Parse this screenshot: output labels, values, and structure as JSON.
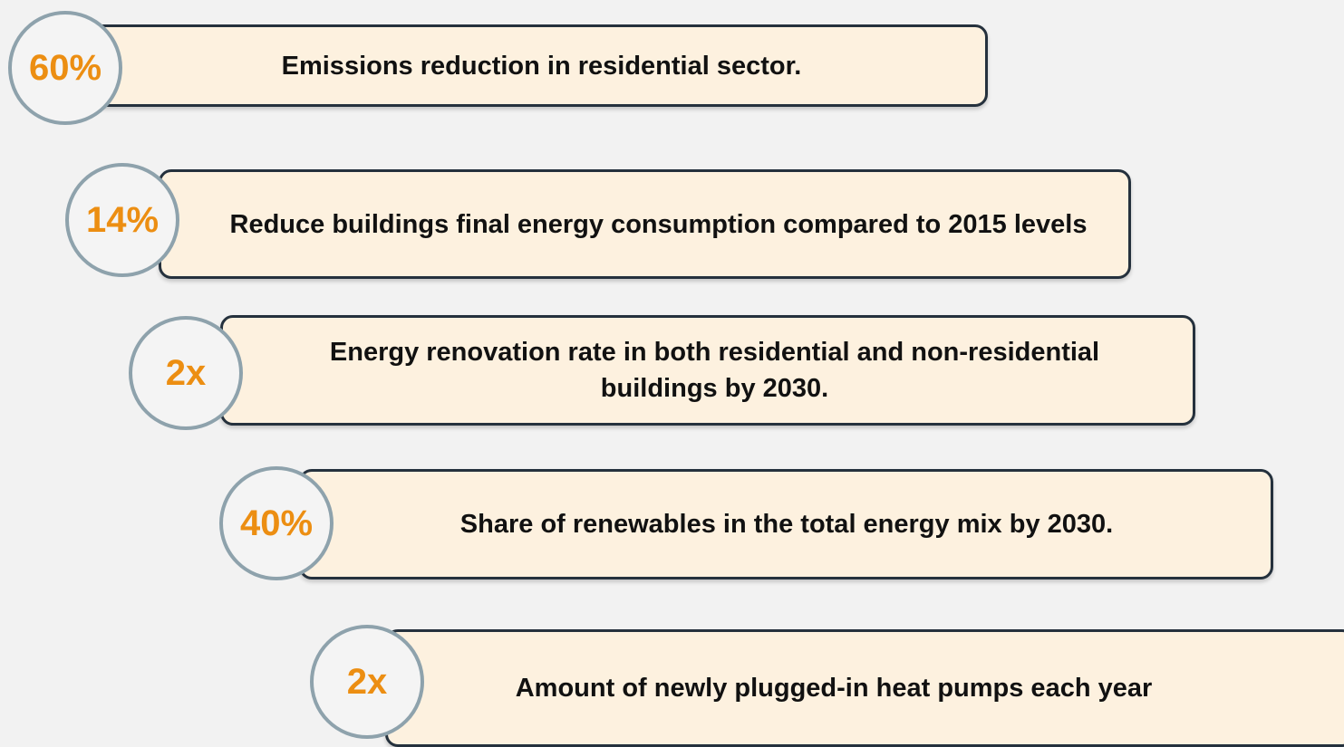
{
  "items": [
    {
      "badge": "60%",
      "text": "Emissions reduction in residential sector."
    },
    {
      "badge": "14%",
      "text": "Reduce buildings final energy consumption compared to 2015 levels"
    },
    {
      "badge": "2x",
      "text": "Energy renovation rate in both residential and non-residential buildings by 2030."
    },
    {
      "badge": "40%",
      "text": "Share of renewables in the total energy mix by 2030."
    },
    {
      "badge": "2x",
      "text": "Amount of newly plugged-in heat pumps each year"
    }
  ]
}
